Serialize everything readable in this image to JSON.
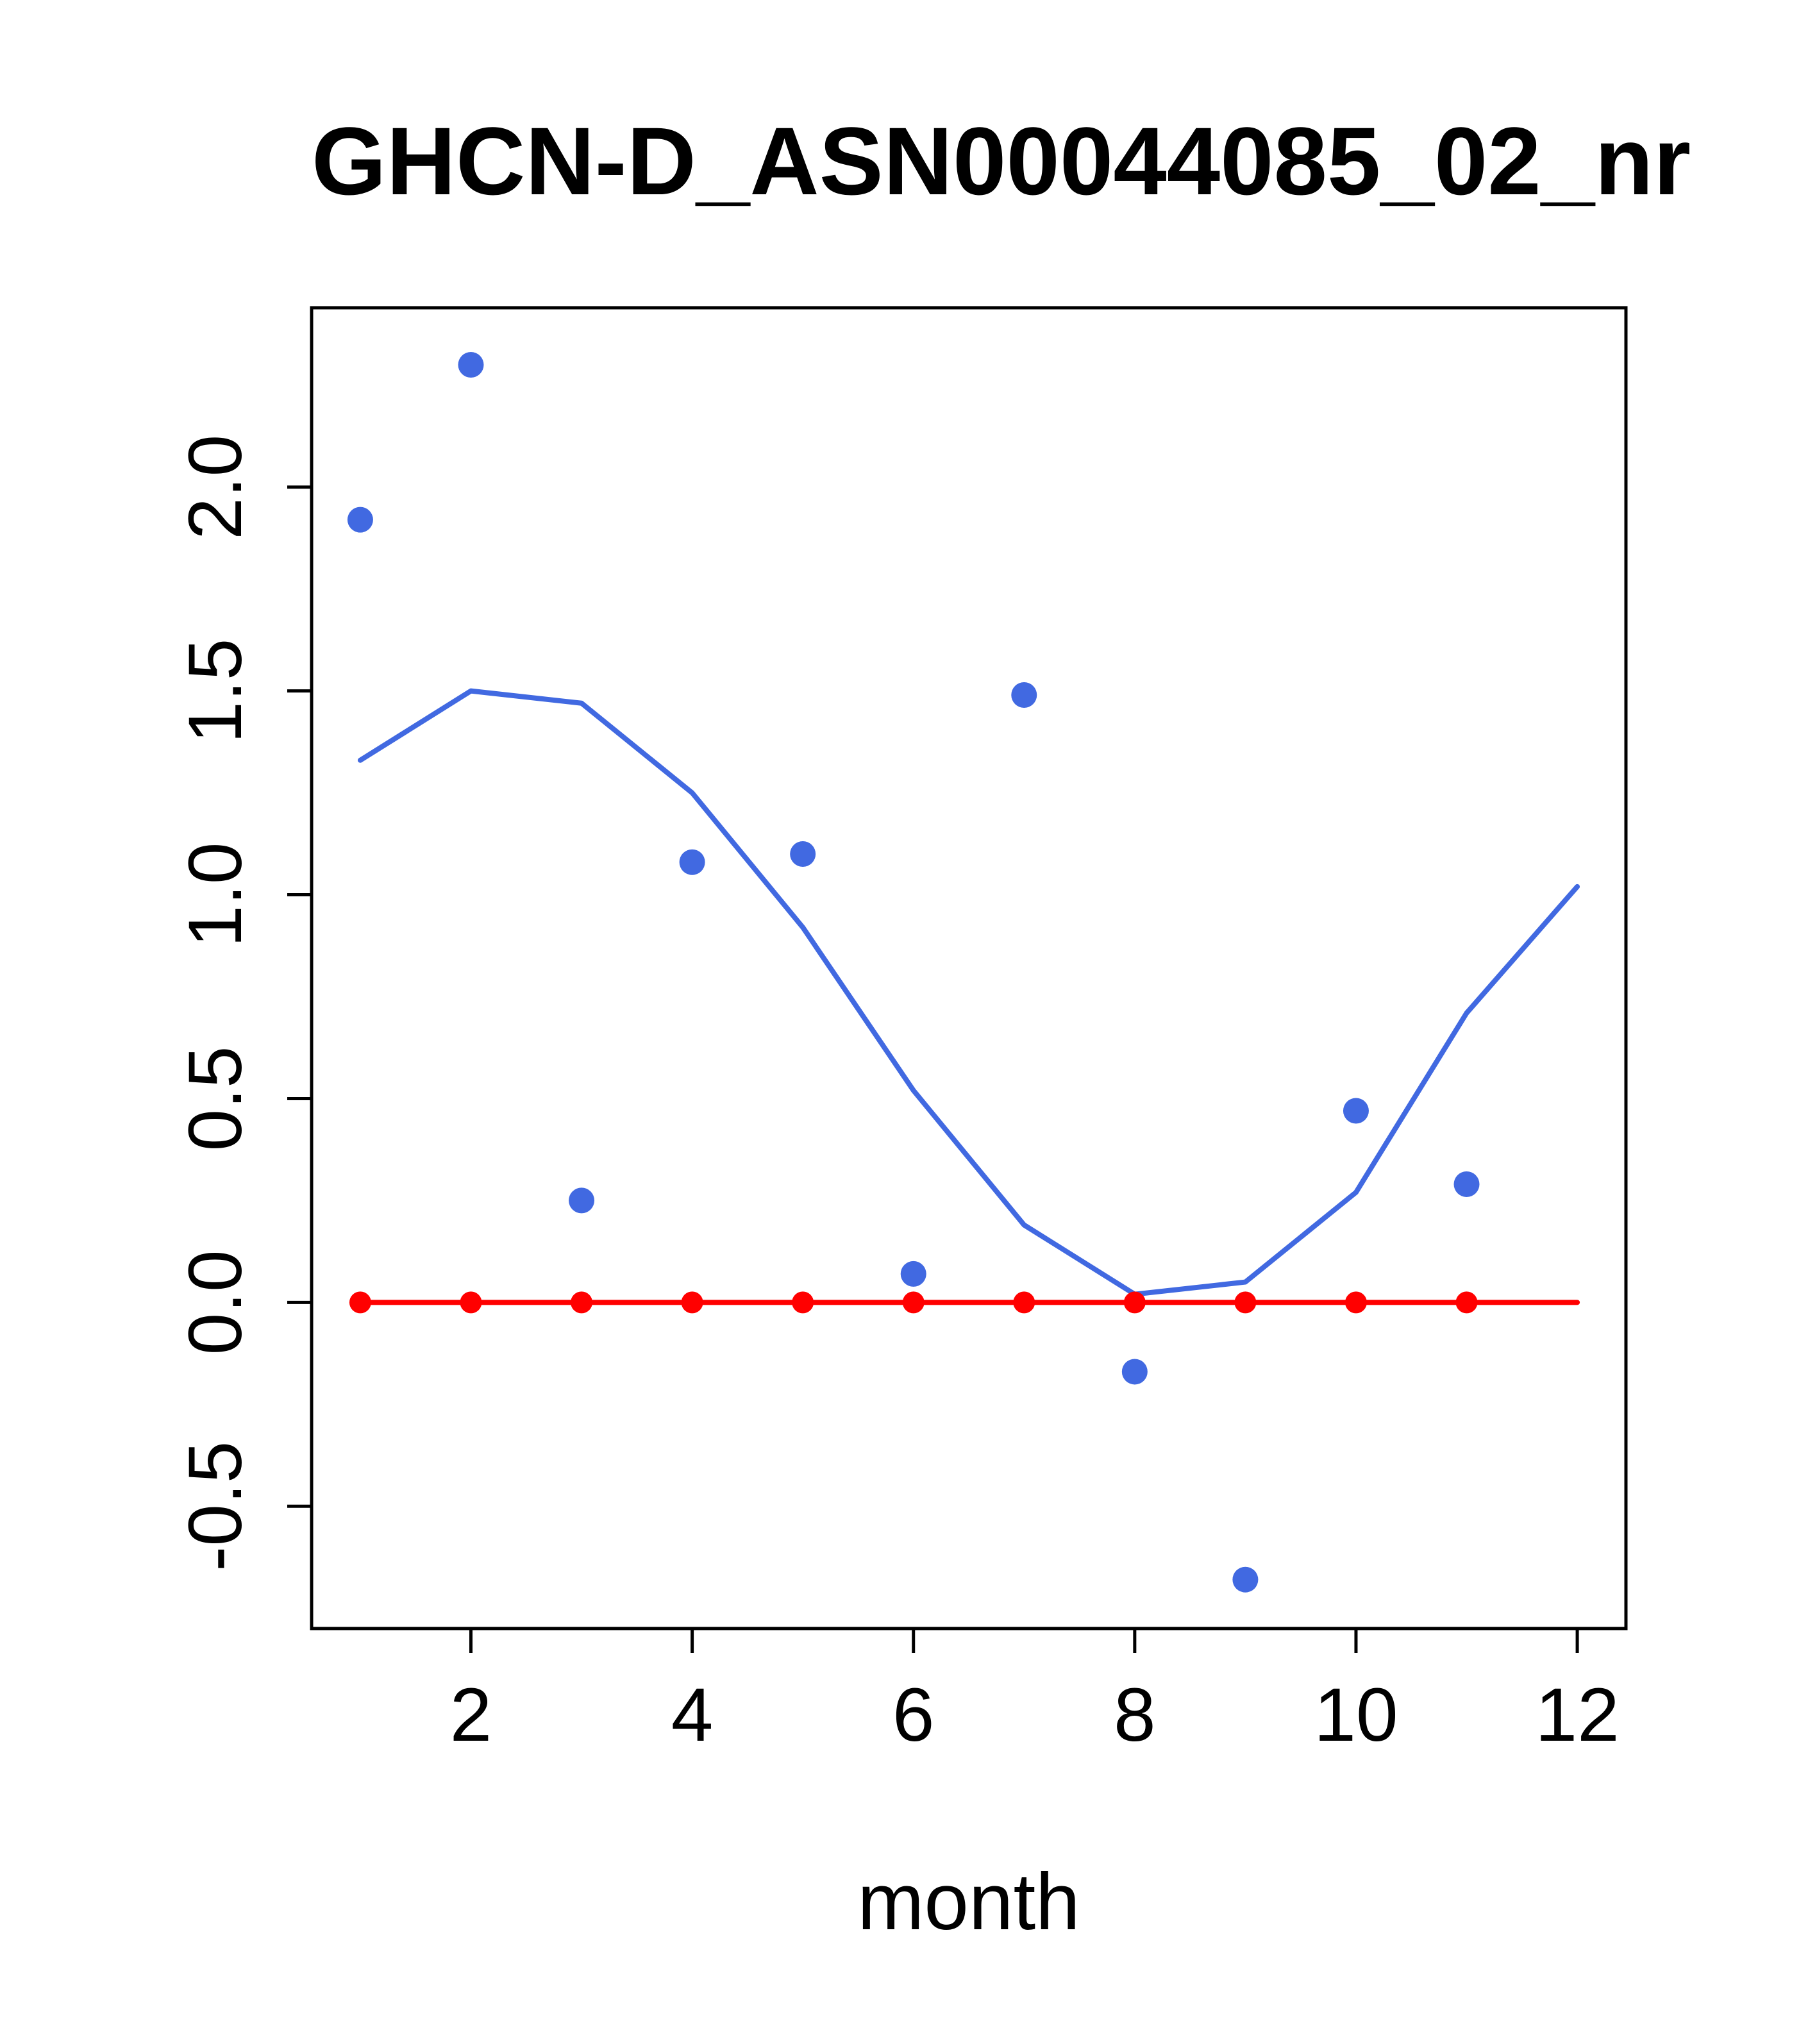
{
  "title": "GHCN-D_ASN00044085_02_nr",
  "x_axis_label": "month",
  "chart_data": {
    "type": "scatter",
    "title": "GHCN-D_ASN00044085_02_nr",
    "xlabel": "month",
    "ylabel": "",
    "xlim": [
      0.56,
      12.44
    ],
    "ylim": [
      -0.8,
      2.44
    ],
    "x_ticks": [
      2,
      4,
      6,
      8,
      10,
      12
    ],
    "y_ticks": [
      -0.5,
      0.0,
      0.5,
      1.0,
      1.5,
      2.0
    ],
    "grid": false,
    "legend": "none",
    "colors": {
      "points": "#4169E1",
      "smooth_line": "#4169E1",
      "baseline": "#FF0000",
      "axis": "#000000",
      "background": "#FFFFFF"
    },
    "series": [
      {
        "name": "smoothed-fit",
        "kind": "line",
        "color": "#4169E1",
        "width": 8,
        "x": [
          1,
          2,
          3,
          4,
          5,
          6,
          7,
          8,
          9,
          10,
          11,
          12
        ],
        "y": [
          1.33,
          1.5,
          1.47,
          1.25,
          0.92,
          0.52,
          0.19,
          0.02,
          0.05,
          0.27,
          0.71,
          1.02
        ]
      },
      {
        "name": "zero-baseline-line",
        "kind": "line",
        "color": "#FF0000",
        "width": 8,
        "x": [
          1,
          12
        ],
        "y": [
          0,
          0
        ]
      },
      {
        "name": "zero-baseline-points",
        "kind": "scatter",
        "color": "#FF0000",
        "radius": 17,
        "x": [
          1,
          2,
          3,
          4,
          5,
          6,
          7,
          8,
          9,
          10,
          11
        ],
        "y": [
          0,
          0,
          0,
          0,
          0,
          0,
          0,
          0,
          0,
          0,
          0
        ]
      },
      {
        "name": "monthly-values",
        "kind": "scatter",
        "color": "#4169E1",
        "radius": 20,
        "x": [
          1,
          2,
          3,
          4,
          5,
          6,
          7,
          8,
          9,
          10,
          11
        ],
        "y": [
          1.92,
          2.3,
          0.25,
          1.08,
          1.1,
          0.07,
          1.49,
          -0.17,
          -0.68,
          0.47,
          0.29
        ]
      }
    ]
  }
}
